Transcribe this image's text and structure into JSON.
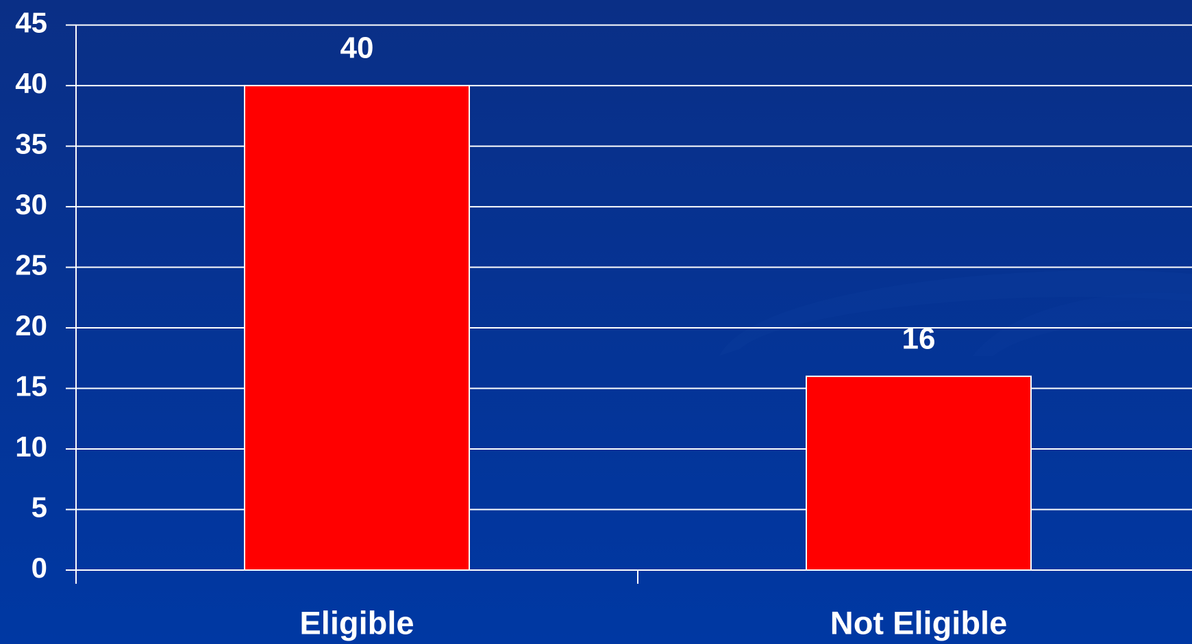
{
  "chart_data": {
    "type": "bar",
    "categories": [
      "Eligible",
      "Not Eligible"
    ],
    "values": [
      40,
      16
    ],
    "color": "#ff0000",
    "ylim": [
      0,
      45
    ],
    "yticks": [
      0,
      5,
      10,
      15,
      20,
      25,
      30,
      35,
      40,
      45
    ],
    "grid": true
  }
}
